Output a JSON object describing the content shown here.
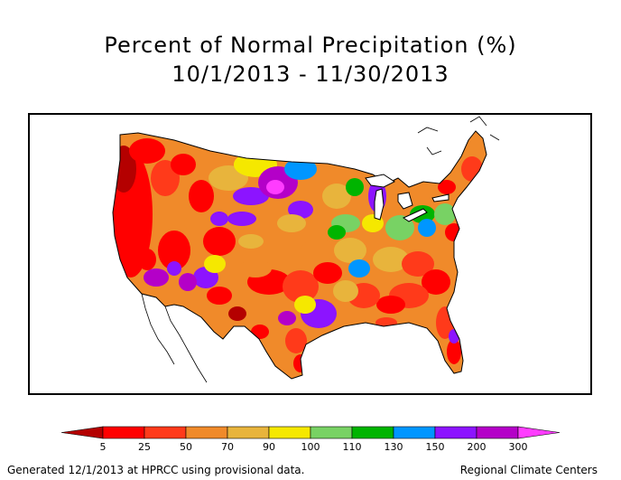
{
  "title": "Percent of Normal Precipitation (%)",
  "date_range": "10/1/2013 - 11/30/2013",
  "legend": {
    "ticks": [
      "5",
      "25",
      "50",
      "70",
      "90",
      "100",
      "110",
      "130",
      "150",
      "200",
      "300"
    ],
    "colors": [
      "#b40000",
      "#ff0000",
      "#ff3a1a",
      "#f08a2a",
      "#e8b43c",
      "#f5e800",
      "#78d264",
      "#00b400",
      "#0096ff",
      "#8c14ff",
      "#b400c8",
      "#ff3cff"
    ]
  },
  "map_colors": {
    "land_base": "#f08a2a",
    "palette_keys": [
      "very_dry",
      "dry",
      "below",
      "near",
      "normal",
      "above",
      "wet",
      "very_wet",
      "extreme"
    ]
  },
  "footer_left": "Generated 12/1/2013 at HPRCC using provisional data.",
  "footer_right": "Regional Climate Centers"
}
